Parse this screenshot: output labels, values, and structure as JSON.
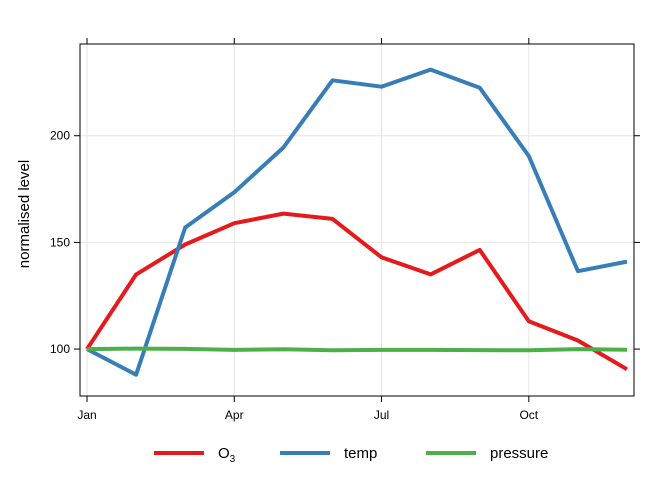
{
  "chart_data": {
    "type": "line",
    "x": [
      "Jan",
      "Feb",
      "Mar",
      "Apr",
      "May",
      "Jun",
      "Jul",
      "Aug",
      "Sep",
      "Oct",
      "Nov",
      "Dec"
    ],
    "ylabel": "normalised level",
    "ylim": [
      78,
      243
    ],
    "x_ticks": [
      "Jan",
      "Apr",
      "Jul",
      "Oct"
    ],
    "y_ticks": [
      100,
      150,
      200
    ],
    "grid": true,
    "legend_position": "bottom",
    "series": [
      {
        "name": "O",
        "subscript": "3",
        "color": "#e41a1c",
        "values": [
          100,
          135,
          149,
          159,
          163.5,
          161,
          143,
          135,
          146.5,
          113,
          104,
          90.5
        ]
      },
      {
        "name": "temp",
        "color": "#377eb8",
        "values": [
          100,
          88,
          157,
          173.5,
          194.5,
          226,
          223,
          231,
          222.5,
          190.5,
          136.5,
          141
        ]
      },
      {
        "name": "pressure",
        "color": "#4daf4a",
        "values": [
          100,
          100.2,
          100.1,
          99.6,
          99.9,
          99.4,
          99.6,
          99.6,
          99.5,
          99.4,
          100,
          99.7
        ]
      }
    ]
  }
}
